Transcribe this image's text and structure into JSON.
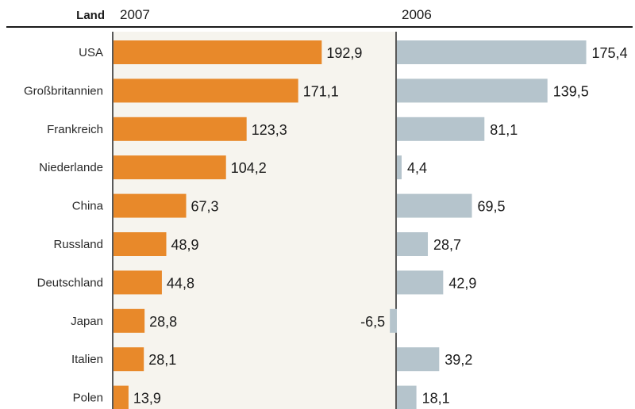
{
  "header": {
    "land_label": "Land",
    "left_year": "2007",
    "right_year": "2006"
  },
  "chart_data": {
    "type": "bar",
    "orientation": "horizontal",
    "categories": [
      "USA",
      "Großbritannien",
      "Frankreich",
      "Niederlande",
      "China",
      "Russland",
      "Deutschland",
      "Japan",
      "Italien",
      "Polen"
    ],
    "series": [
      {
        "name": "2007",
        "values": [
          192.9,
          171.1,
          123.3,
          104.2,
          67.3,
          48.9,
          44.8,
          28.8,
          28.1,
          13.9
        ],
        "labels": [
          "192,9",
          "171,1",
          "123,3",
          "104,2",
          "67,3",
          "48,9",
          "44,8",
          "28,8",
          "28,1",
          "13,9"
        ],
        "color": "#e8892a"
      },
      {
        "name": "2006",
        "values": [
          175.4,
          139.5,
          81.1,
          4.4,
          69.5,
          28.7,
          42.9,
          -6.5,
          39.2,
          18.1
        ],
        "labels": [
          "175,4",
          "139,5",
          "81,1",
          "4,4",
          "69,5",
          "28,7",
          "42,9",
          "-6,5",
          "39,2",
          "18,1"
        ],
        "color": "#b5c4cc"
      }
    ],
    "panel_background": "#f6f4ee",
    "grid": false,
    "legend": "top"
  }
}
